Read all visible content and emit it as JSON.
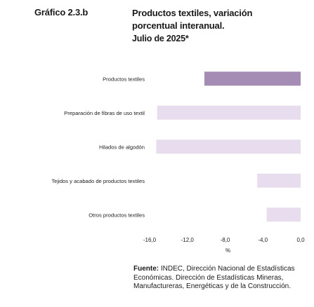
{
  "figure": {
    "number": "Gráfico 2.3.b",
    "title_lines": [
      "Productos textiles, variación",
      "porcentual interanual."
    ],
    "date_line": "Julio de 2025*"
  },
  "chart_data": {
    "type": "bar",
    "orientation": "horizontal",
    "categories": [
      "Productos textiles",
      "Preparación de fibras de uso textil",
      "Hilados de algodón",
      "Tejidos y acabado de productos textiles",
      "Otros productos textiles"
    ],
    "values": [
      -10.2,
      -15.2,
      -15.3,
      -4.6,
      -3.6
    ],
    "xlim": [
      -16.0,
      0.0
    ],
    "xticks": [
      -16.0,
      -12.0,
      -8.0,
      -4.0,
      0.0
    ],
    "xtick_labels": [
      "-16,0",
      "-12,0",
      "-8,0",
      "-4,0",
      "0,0"
    ],
    "xlabel": "%",
    "colors": {
      "highlight": "#a48cb5",
      "bars": "#e8ddee"
    },
    "highlight_index": 0,
    "grid": false,
    "legend": "none"
  },
  "source": {
    "label": "Fuente:",
    "text": " INDEC, Dirección Nacional de Estadísticas Económicas. Dirección de Estadísticas Mineras, Manufactureras, Energéticas y de la Construcción."
  }
}
